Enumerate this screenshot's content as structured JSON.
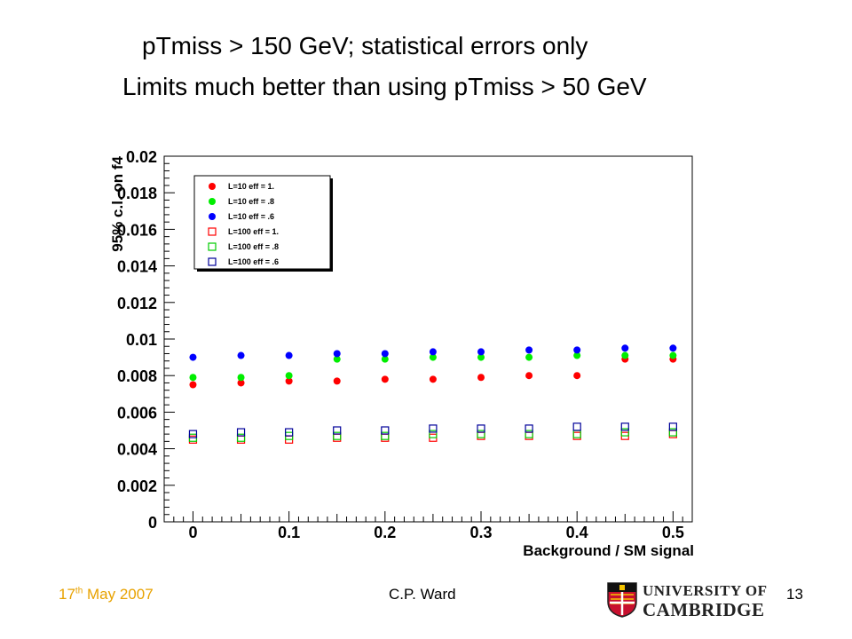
{
  "slide": {
    "title_line1": "pTmiss > 150 GeV; statistical errors only",
    "title_line2": "Limits much better than using pTmiss > 50 GeV",
    "footer_date_prefix": "17",
    "footer_date_sup": "th",
    "footer_date_suffix": " May 2007",
    "footer_author": "C.P. Ward",
    "footer_page": "13",
    "logo_line1": "UNIVERSITY OF",
    "logo_line2": "CAMBRIDGE",
    "date_color": "#e8a200"
  },
  "chart_data": {
    "type": "scatter",
    "xlabel": "Background / SM signal",
    "ylabel": "95% c.l. on f4",
    "xlim": [
      -0.03,
      0.52
    ],
    "ylim": [
      0,
      0.02
    ],
    "x_ticks": [
      "0",
      "0.1",
      "0.2",
      "0.3",
      "0.4",
      "0.5"
    ],
    "x_tick_values": [
      0,
      0.1,
      0.2,
      0.3,
      0.4,
      0.5
    ],
    "y_ticks": [
      "0",
      "0.002",
      "0.004",
      "0.006",
      "0.008",
      "0.01",
      "0.012",
      "0.014",
      "0.016",
      "0.018",
      "0.02"
    ],
    "y_tick_values": [
      0,
      0.002,
      0.004,
      0.006,
      0.008,
      0.01,
      0.012,
      0.014,
      0.016,
      0.018,
      0.02
    ],
    "legend_position": "top-left",
    "x": [
      0,
      0.05,
      0.1,
      0.15,
      0.2,
      0.25,
      0.3,
      0.35,
      0.4,
      0.45,
      0.5
    ],
    "series": [
      {
        "name": "L=10 eff = 1.",
        "color": "#ff0000",
        "marker": "filled-circle",
        "values": [
          0.0075,
          0.0076,
          0.0077,
          0.0077,
          0.0078,
          0.0078,
          0.0079,
          0.008,
          0.008,
          0.0089,
          0.0089
        ]
      },
      {
        "name": "L=10 eff = .8",
        "color": "#00ee00",
        "marker": "filled-circle",
        "values": [
          0.0079,
          0.0079,
          0.008,
          0.0089,
          0.0089,
          0.009,
          0.009,
          0.009,
          0.0091,
          0.0091,
          0.0091
        ]
      },
      {
        "name": "L=10 eff = .6",
        "color": "#0000ff",
        "marker": "filled-circle",
        "values": [
          0.009,
          0.0091,
          0.0091,
          0.0092,
          0.0092,
          0.0093,
          0.0093,
          0.0094,
          0.0094,
          0.0095,
          0.0095
        ]
      },
      {
        "name": "L=100 eff = 1.",
        "color": "#ff0000",
        "marker": "open-square",
        "values": [
          0.0045,
          0.0045,
          0.0045,
          0.0046,
          0.0046,
          0.0046,
          0.0047,
          0.0047,
          0.0047,
          0.0047,
          0.0048
        ]
      },
      {
        "name": "L=100 eff = .8",
        "color": "#00cc00",
        "marker": "open-square",
        "values": [
          0.0046,
          0.0046,
          0.0047,
          0.0047,
          0.0047,
          0.0048,
          0.0048,
          0.0048,
          0.0048,
          0.0049,
          0.0049
        ]
      },
      {
        "name": "L=100 eff = .6",
        "color": "#000099",
        "marker": "open-square",
        "values": [
          0.0048,
          0.0049,
          0.0049,
          0.005,
          0.005,
          0.0051,
          0.0051,
          0.0051,
          0.0052,
          0.0052,
          0.0052
        ]
      }
    ]
  }
}
